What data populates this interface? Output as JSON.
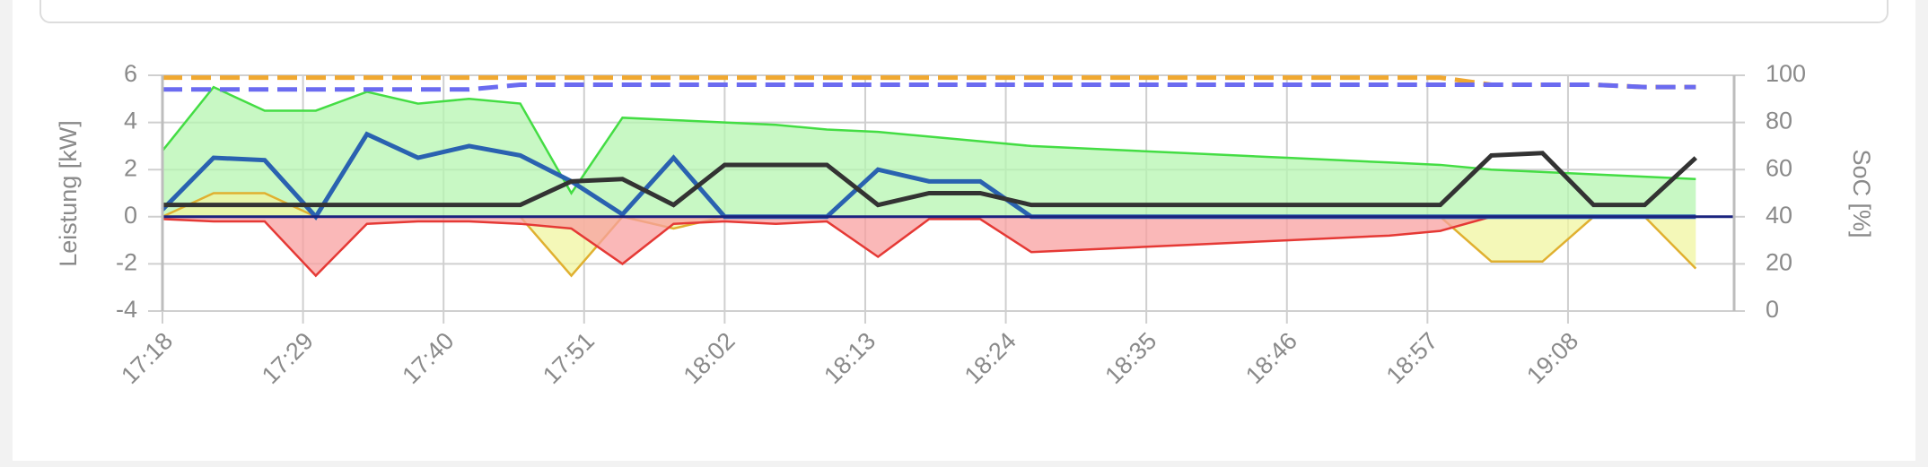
{
  "chart_data": {
    "type": "line",
    "ylabel": "Leistung [kW]",
    "y2label": "SoC [%]",
    "x": [
      "17:18",
      "17:22",
      "17:26",
      "17:30",
      "17:34",
      "17:38",
      "17:42",
      "17:46",
      "17:50",
      "17:54",
      "17:58",
      "18:02",
      "18:06",
      "18:10",
      "18:14",
      "18:18",
      "18:22",
      "18:26",
      "18:30",
      "18:34",
      "18:38",
      "18:42",
      "18:46",
      "18:50",
      "18:54",
      "18:58",
      "19:02",
      "19:06",
      "19:10",
      "19:14",
      "19:18"
    ],
    "xlim": [
      "17:18",
      "19:21"
    ],
    "xticks": [
      "17:18",
      "17:29",
      "17:40",
      "17:51",
      "18:02",
      "18:13",
      "18:24",
      "18:35",
      "18:46",
      "18:57",
      "19:08"
    ],
    "ylim": [
      -4,
      6
    ],
    "yticks": [
      -4,
      -2,
      0,
      2,
      4,
      6
    ],
    "y2lim": [
      0,
      100
    ],
    "y2ticks": [
      0,
      20,
      40,
      60,
      80,
      100
    ],
    "grid": true,
    "series": [
      {
        "kind": "area",
        "color": "#44dd44",
        "fill": "#b5f5b0",
        "values": [
          2.8,
          5.5,
          4.5,
          4.5,
          5.3,
          4.8,
          5.0,
          4.8,
          1.0,
          4.2,
          4.1,
          4.0,
          3.9,
          3.7,
          3.6,
          3.4,
          3.2,
          3.0,
          2.9,
          2.8,
          2.7,
          2.6,
          2.5,
          2.4,
          2.3,
          2.2,
          2.0,
          1.9,
          1.8,
          1.7,
          1.6
        ]
      },
      {
        "kind": "area",
        "color": "#e0b030",
        "fill": "#f0f5a0",
        "values": [
          0,
          1.0,
          1.0,
          0,
          0,
          0,
          0,
          0,
          -2.5,
          0,
          -0.5,
          0,
          0,
          0,
          0,
          0,
          0,
          0,
          0,
          0,
          0,
          0,
          0,
          0,
          0,
          0,
          -1.9,
          -1.9,
          0,
          0,
          -2.2
        ]
      },
      {
        "kind": "area",
        "color": "#e53935",
        "fill": "#f8a0a0",
        "values": [
          -0.1,
          -0.2,
          -0.2,
          -2.5,
          -0.3,
          -0.2,
          -0.2,
          -0.3,
          -0.5,
          -2.0,
          -0.3,
          -0.2,
          -0.3,
          -0.2,
          -1.7,
          -0.1,
          -0.1,
          -1.5,
          -1.4,
          -1.3,
          -1.2,
          -1.1,
          -1.0,
          -0.9,
          -0.8,
          -0.6,
          0,
          0,
          0,
          0,
          0
        ]
      },
      {
        "kind": "line",
        "color": "#2a62b0",
        "values": [
          0.3,
          2.5,
          2.4,
          0,
          3.5,
          2.5,
          3.0,
          2.6,
          1.5,
          0.1,
          2.5,
          0,
          0,
          0,
          2.0,
          1.5,
          1.5,
          0,
          0,
          0,
          0,
          0,
          0,
          0,
          0,
          0,
          0,
          0,
          0,
          0,
          0
        ]
      },
      {
        "kind": "line",
        "color": "#333333",
        "values": [
          0.5,
          0.5,
          0.5,
          0.5,
          0.5,
          0.5,
          0.5,
          0.5,
          1.5,
          1.6,
          0.5,
          2.2,
          2.2,
          2.2,
          0.5,
          1.0,
          1.0,
          0.5,
          0.5,
          0.5,
          0.5,
          0.5,
          0.5,
          0.5,
          0.5,
          0.5,
          2.6,
          2.7,
          0.5,
          0.5,
          2.5
        ]
      },
      {
        "kind": "line",
        "axis": "y2",
        "dash": true,
        "color": "#f0a830",
        "values": [
          99,
          99,
          99,
          99,
          99,
          99,
          99,
          99,
          99,
          99,
          99,
          99,
          99,
          99,
          99,
          99,
          99,
          99,
          99,
          99,
          99,
          99,
          99,
          99,
          99,
          99,
          96,
          96,
          96,
          95,
          95
        ]
      },
      {
        "kind": "line",
        "axis": "y2",
        "dash": true,
        "color": "#6b6bf0",
        "values": [
          94,
          94,
          94,
          94,
          94,
          94,
          94,
          96,
          96,
          96,
          96,
          96,
          96,
          96,
          96,
          96,
          96,
          96,
          96,
          96,
          96,
          96,
          96,
          96,
          96,
          96,
          96,
          96,
          96,
          95,
          95
        ]
      }
    ]
  }
}
